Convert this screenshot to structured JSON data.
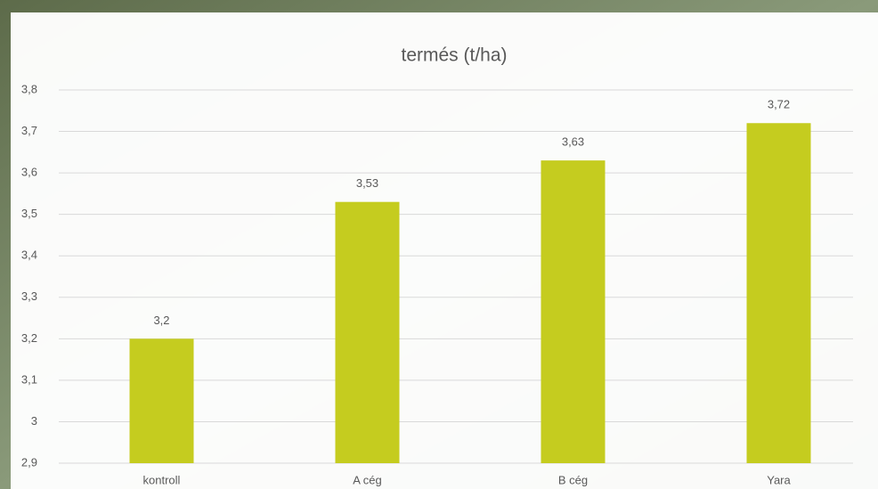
{
  "chart_data": {
    "type": "bar",
    "title": "termés (t/ha)",
    "categories": [
      "kontroll",
      "A cég",
      "B cég",
      "Yara"
    ],
    "values": [
      3.2,
      3.53,
      3.63,
      3.72
    ],
    "value_labels": [
      "3,2",
      "3,53",
      "3,63",
      "3,72"
    ],
    "color": "#c5cc1f",
    "ylim": [
      2.9,
      3.8
    ],
    "yticks": [
      {
        "value": 2.9,
        "label": "2,9"
      },
      3,
      {
        "value": 3.1,
        "label": "3,1"
      },
      {
        "value": 3.2,
        "label": "3,2"
      },
      {
        "value": 3.3,
        "label": "3,3"
      },
      {
        "value": 3.4,
        "label": "3,4"
      },
      {
        "value": 3.5,
        "label": "3,5"
      },
      {
        "value": 3.6,
        "label": "3,6"
      },
      {
        "value": 3.7,
        "label": "3,7"
      },
      {
        "value": 3.8,
        "label": "3,8"
      }
    ],
    "grid": true
  }
}
